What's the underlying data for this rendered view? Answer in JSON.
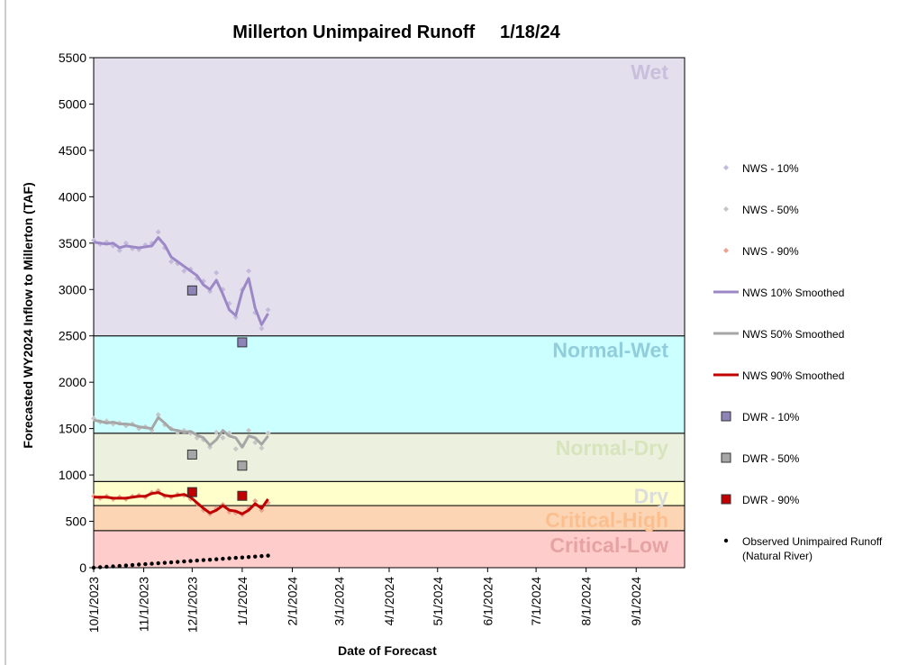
{
  "chart_data": {
    "type": "line",
    "title": "Millerton Unimpaired Runoff     1/18/24",
    "x_label": "Date of Forecast",
    "y_label": "Forecasted WY2024 Inflow to Millerton (TAF)",
    "xlim": [
      "2023-10-01",
      "2024-10-01"
    ],
    "xticks": [
      {
        "value": "2023-10-01",
        "label": "10/1/2023"
      },
      {
        "value": "2023-11-01",
        "label": "11/1/2023"
      },
      {
        "value": "2023-12-01",
        "label": "12/1/2023"
      },
      {
        "value": "2024-01-01",
        "label": "1/1/2024"
      },
      {
        "value": "2024-02-01",
        "label": "2/1/2024"
      },
      {
        "value": "2024-03-01",
        "label": "3/1/2024"
      },
      {
        "value": "2024-04-01",
        "label": "4/1/2024"
      },
      {
        "value": "2024-05-01",
        "label": "5/1/2024"
      },
      {
        "value": "2024-06-01",
        "label": "6/1/2024"
      },
      {
        "value": "2024-07-01",
        "label": "7/1/2024"
      },
      {
        "value": "2024-08-01",
        "label": "8/1/2024"
      },
      {
        "value": "2024-09-01",
        "label": "9/1/2024"
      }
    ],
    "ylim": [
      0,
      5500
    ],
    "yticks": [
      0,
      500,
      1000,
      1500,
      2000,
      2500,
      3000,
      3500,
      4000,
      4500,
      5000,
      5500
    ],
    "zones": [
      {
        "name": "Critical-Low",
        "from": 0,
        "to": 400,
        "color": "#ffcccc",
        "label_color": "#e6a3a3"
      },
      {
        "name": "Critical-High",
        "from": 400,
        "to": 670,
        "color": "#fcd5b4",
        "label_color": "#fbbf8f"
      },
      {
        "name": "Dry",
        "from": 670,
        "to": 930,
        "color": "#ffffcc",
        "label_color": "#dcdcdc"
      },
      {
        "name": "Normal-Dry",
        "from": 930,
        "to": 1450,
        "color": "#ebf1de",
        "label_color": "#d7e4bc"
      },
      {
        "name": "Normal-Wet",
        "from": 1450,
        "to": 2500,
        "color": "#ccffff",
        "label_color": "#92cddc"
      },
      {
        "name": "Wet",
        "from": 2500,
        "to": 5500,
        "color": "#e4dfec",
        "label_color": "#c8bfdc"
      }
    ],
    "x": [
      "2023-10-01",
      "2023-10-05",
      "2023-10-09",
      "2023-10-13",
      "2023-10-17",
      "2023-10-21",
      "2023-10-25",
      "2023-10-29",
      "2023-11-02",
      "2023-11-06",
      "2023-11-10",
      "2023-11-14",
      "2023-11-18",
      "2023-11-22",
      "2023-11-26",
      "2023-11-30",
      "2023-12-04",
      "2023-12-08",
      "2023-12-12",
      "2023-12-16",
      "2023-12-20",
      "2023-12-24",
      "2023-12-28",
      "2024-01-01",
      "2024-01-05",
      "2024-01-09",
      "2024-01-13",
      "2024-01-17"
    ],
    "series": [
      {
        "name": "NWS - 10%",
        "style": "scatter",
        "color": "#c3b9db",
        "values": [
          3530,
          3490,
          3510,
          3470,
          3420,
          3500,
          3440,
          3430,
          3480,
          3500,
          3620,
          3450,
          3300,
          3280,
          3200,
          3220,
          3120,
          3090,
          2980,
          3180,
          3000,
          2850,
          2700,
          3000,
          3200,
          2750,
          2580,
          2780
        ]
      },
      {
        "name": "NWS - 50%",
        "style": "scatter",
        "color": "#c6c6c6",
        "values": [
          1610,
          1570,
          1580,
          1550,
          1560,
          1530,
          1550,
          1500,
          1520,
          1480,
          1650,
          1540,
          1500,
          1460,
          1480,
          1450,
          1400,
          1380,
          1300,
          1460,
          1400,
          1450,
          1280,
          1310,
          1480,
          1350,
          1290,
          1450
        ]
      },
      {
        "name": "NWS - 90%",
        "style": "scatter",
        "color": "#eba18f",
        "values": [
          770,
          750,
          770,
          740,
          760,
          740,
          770,
          780,
          760,
          810,
          830,
          770,
          760,
          790,
          780,
          740,
          690,
          620,
          580,
          640,
          680,
          600,
          590,
          570,
          640,
          720,
          620,
          700
        ]
      },
      {
        "name": "NWS 10% Smoothed",
        "style": "line",
        "color": "#9c88c6",
        "values": [
          3510,
          3500,
          3490,
          3500,
          3450,
          3470,
          3460,
          3450,
          3460,
          3470,
          3560,
          3480,
          3350,
          3300,
          3250,
          3200,
          3150,
          3050,
          3000,
          3100,
          2950,
          2780,
          2720,
          2980,
          3120,
          2800,
          2620,
          2740
        ]
      },
      {
        "name": "NWS 50% Smoothed",
        "style": "line",
        "color": "#a6a6a6",
        "values": [
          1590,
          1580,
          1560,
          1570,
          1550,
          1550,
          1540,
          1520,
          1510,
          1500,
          1620,
          1560,
          1490,
          1480,
          1460,
          1470,
          1430,
          1400,
          1320,
          1380,
          1480,
          1420,
          1400,
          1300,
          1420,
          1400,
          1330,
          1420
        ]
      },
      {
        "name": "NWS 90% Smoothed",
        "style": "line",
        "color": "#c00000",
        "values": [
          760,
          760,
          760,
          750,
          750,
          750,
          760,
          770,
          770,
          800,
          810,
          780,
          770,
          780,
          790,
          760,
          700,
          640,
          590,
          620,
          670,
          620,
          610,
          580,
          620,
          690,
          640,
          740
        ]
      },
      {
        "name": "DWR - 10%",
        "style": "square",
        "color": "#8e84b8",
        "x": [
          "2023-12-01",
          "2024-01-01"
        ],
        "values": [
          2990,
          2430
        ]
      },
      {
        "name": "DWR - 50%",
        "style": "square",
        "color": "#a6a6a6",
        "x": [
          "2023-12-01",
          "2024-01-01"
        ],
        "values": [
          1220,
          1100
        ]
      },
      {
        "name": "DWR - 90%",
        "style": "square",
        "color": "#c00000",
        "x": [
          "2023-12-01",
          "2024-01-01"
        ],
        "values": [
          815,
          775
        ]
      },
      {
        "name": "Observed Unimpaired Runoff (Natural River)",
        "style": "dot",
        "color": "#000000",
        "values": [
          0,
          5,
          10,
          14,
          19,
          24,
          29,
          34,
          38,
          43,
          48,
          53,
          58,
          62,
          67,
          72,
          77,
          82,
          86,
          91,
          96,
          101,
          106,
          110,
          115,
          120,
          125,
          130
        ]
      }
    ]
  }
}
